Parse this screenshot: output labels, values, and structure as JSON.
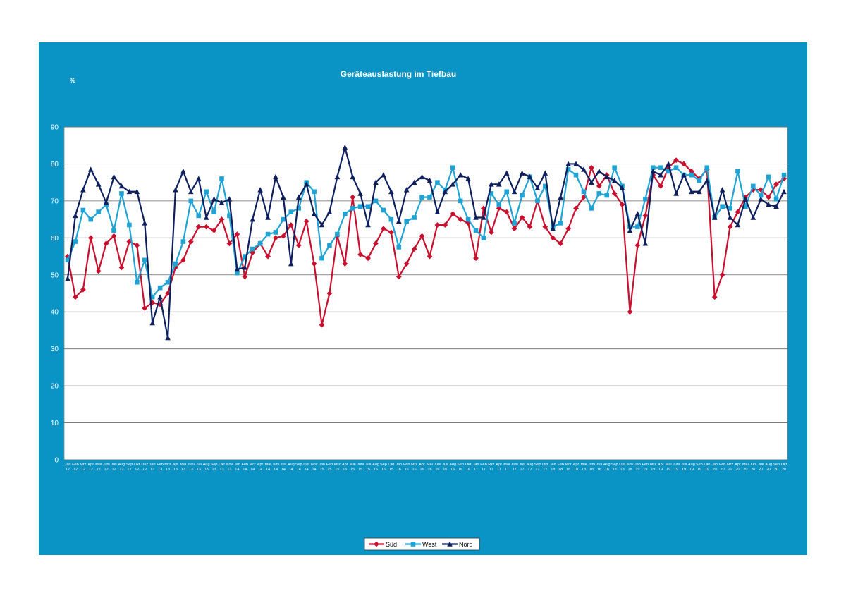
{
  "chart_data": {
    "type": "line",
    "title": "Geräteauslastung im Tiefbau",
    "y_label": "%",
    "categories": [
      "Jan 12",
      "Feb 12",
      "Mrz 12",
      "Apr 12",
      "Mai 12",
      "Juni 12",
      "Juli 12",
      "Aug 12",
      "Sep 12",
      "Okt 12",
      "Dez 12",
      "Jan 13",
      "Feb 13",
      "Mrz 13",
      "Apr 13",
      "Mai 13",
      "Juni 13",
      "Juli 13",
      "Aug 13",
      "Sep 13",
      "Okt 13",
      "Nov 13",
      "Jan 14",
      "Feb 14",
      "Mrz 14",
      "Apr 14",
      "Mai 14",
      "Juni 14",
      "Juli 14",
      "Aug 14",
      "Sep 14",
      "Okt 14",
      "Nov 14",
      "Jan 15",
      "Feb 15",
      "Mrz 15",
      "Apr 15",
      "Mai 15",
      "Juni 15",
      "Juli 15",
      "Aug 15",
      "Sep 15",
      "Okt 15",
      "Jan 16",
      "Feb 16",
      "Mrz 16",
      "Apr 16",
      "Mai 16",
      "Juni 16",
      "Juli 16",
      "Aug 16",
      "Sep 16",
      "Okt 16",
      "Jan 17",
      "Feb 17",
      "Mrz 17",
      "Apr 17",
      "Mai 17",
      "Juni 17",
      "Juli 17",
      "Aug 17",
      "Sep 17",
      "Okt 17",
      "Jan 18",
      "Feb 18",
      "Mrz 18",
      "Apr 18",
      "Mai 18",
      "Juni 18",
      "Juli 18",
      "Aug 18",
      "Sep 18",
      "Okt 18",
      "Nov 18",
      "Jan 19",
      "Feb 19",
      "Mrz 19",
      "Apr 19",
      "Mai 19",
      "Juni 19",
      "Juli 19",
      "Aug 19",
      "Sep 19",
      "Okt 19",
      "Jan 20",
      "Feb 20",
      "Mrz 20",
      "Apr 20",
      "Mai 20",
      "Juni 20",
      "Juli 20",
      "Aug 20",
      "Sep 20",
      "Okt 20"
    ],
    "series": [
      {
        "name": "Süd",
        "color": "#c8102e",
        "marker": "diamond",
        "values": [
          55,
          44,
          46,
          60,
          51,
          58.5,
          60.5,
          52,
          59,
          58,
          41,
          42.5,
          42,
          45,
          52,
          54,
          59,
          63,
          63,
          62,
          65,
          58.5,
          61,
          49.5,
          56,
          58.5,
          55,
          60,
          60.5,
          63.5,
          58,
          64.5,
          53,
          36.5,
          45,
          60.5,
          53,
          71,
          55.5,
          54.5,
          58.5,
          62.5,
          61.5,
          49.5,
          53,
          57,
          60.5,
          55,
          63.5,
          63.5,
          66.5,
          65,
          64,
          54.5,
          68,
          61.5,
          68,
          67,
          62.5,
          65.5,
          63,
          70,
          63,
          60,
          58.5,
          62.5,
          68,
          71,
          79,
          74,
          77,
          72,
          69,
          40,
          58,
          66,
          77,
          74,
          79,
          81,
          80,
          78,
          76,
          78.5,
          44,
          50,
          63,
          67,
          71,
          73,
          73,
          71,
          74.5,
          76
        ]
      },
      {
        "name": "West",
        "color": "#1ea3d4",
        "marker": "square",
        "values": [
          54,
          59,
          67.5,
          65,
          67,
          69,
          62,
          72,
          63.5,
          48,
          54,
          44,
          46.5,
          48,
          53,
          59,
          70,
          66,
          72.5,
          67,
          76,
          66,
          50.5,
          55,
          57,
          58.5,
          61,
          61.5,
          65,
          67,
          68,
          75,
          72.5,
          54.5,
          58,
          61,
          66.5,
          68,
          68.5,
          68.5,
          70,
          67.5,
          65,
          57.5,
          64.5,
          65.5,
          71,
          71,
          75,
          73,
          79,
          70,
          65,
          62,
          60,
          72,
          69,
          72.5,
          64,
          71.5,
          76.5,
          70,
          74,
          63,
          64,
          78.5,
          77,
          72.5,
          68,
          72,
          71.5,
          79,
          74,
          63,
          63,
          70.5,
          79,
          79,
          78,
          79,
          77,
          77,
          75.5,
          79,
          65.5,
          68.5,
          68,
          78,
          68.5,
          74,
          71.5,
          76.5,
          70.5,
          77
        ]
      },
      {
        "name": "Nord",
        "color": "#0e1f5e",
        "marker": "triangle",
        "values": [
          49,
          66,
          73,
          78.5,
          74.5,
          69.5,
          76.5,
          74,
          72.5,
          72.5,
          64,
          37,
          44,
          33,
          73,
          78,
          72.5,
          76,
          65.5,
          70.5,
          69.5,
          70.5,
          51.5,
          52,
          65,
          73,
          65.5,
          76.5,
          71,
          53,
          71,
          74.5,
          66.5,
          63.5,
          67,
          76.5,
          84.5,
          76.5,
          72,
          63.5,
          75,
          77,
          72.5,
          64.5,
          73,
          75,
          76.5,
          75.5,
          67,
          72.5,
          74.5,
          77,
          76,
          65.5,
          65.5,
          74.5,
          74.5,
          77.5,
          72.5,
          77.5,
          76.5,
          73.5,
          77.5,
          62.5,
          71,
          80,
          80,
          78.5,
          75,
          78,
          76.5,
          75.5,
          73.5,
          62,
          66.5,
          58.5,
          78,
          77,
          80,
          72,
          77,
          72.5,
          72.5,
          75.5,
          65.5,
          73,
          65.5,
          63.5,
          70.5,
          65.5,
          70.5,
          69,
          68.5,
          72.5
        ]
      }
    ],
    "ylim": [
      0,
      90
    ],
    "yticks": [
      0,
      10,
      20,
      30,
      40,
      50,
      60,
      70,
      80,
      90
    ],
    "grid": true,
    "legend": "bottom"
  }
}
